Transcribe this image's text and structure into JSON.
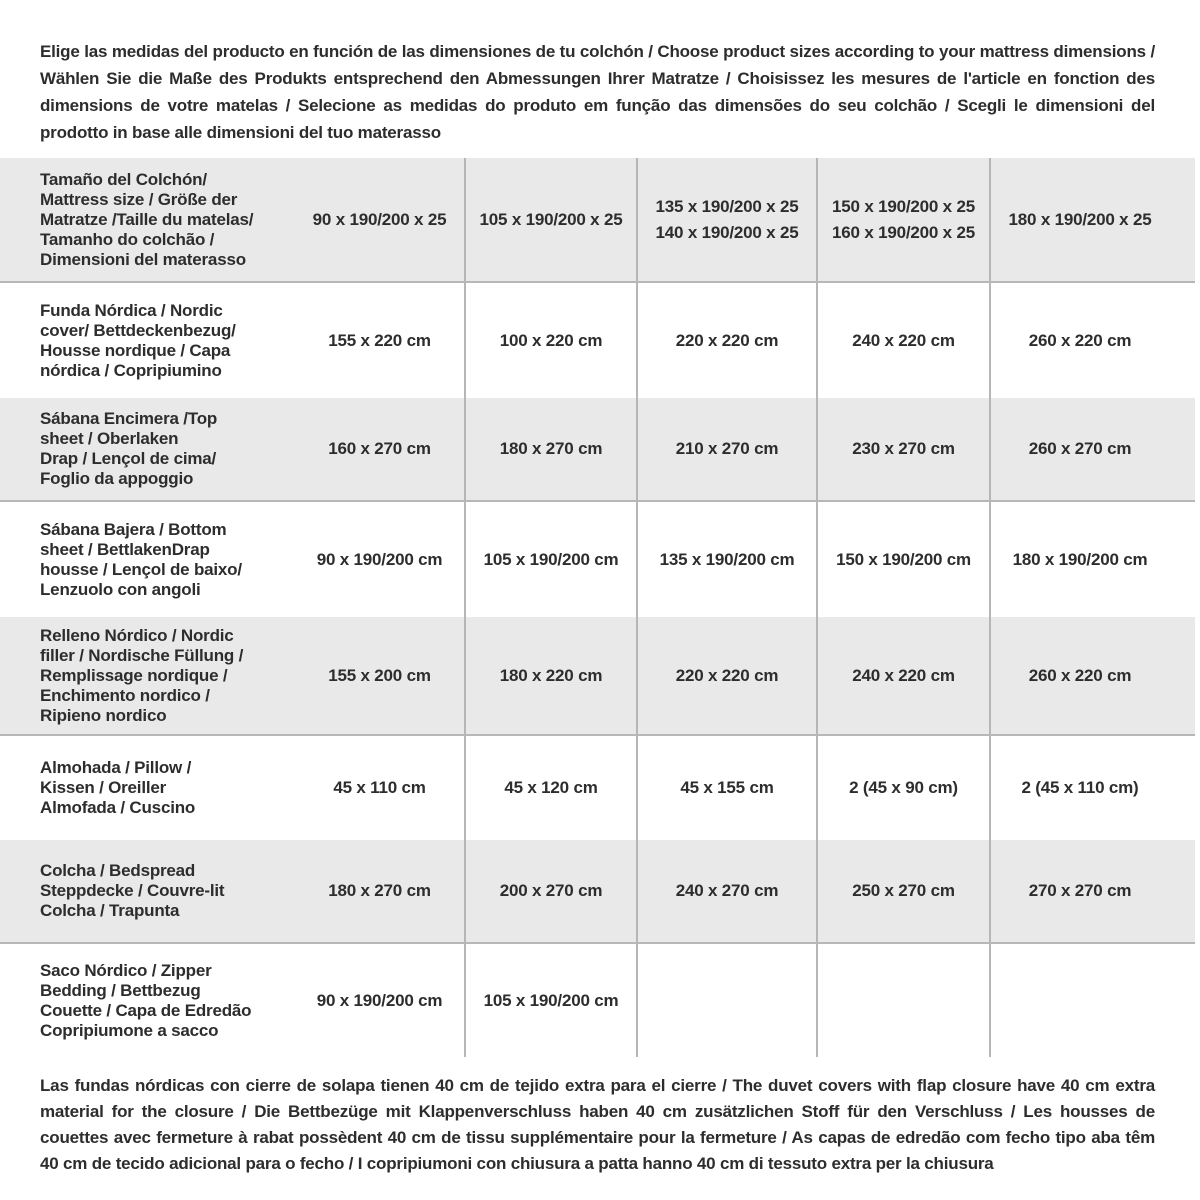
{
  "intro": "Elige las medidas del producto en función de las dimensiones de tu colchón / Choose product sizes according to your mattress dimensions / Wählen Sie die Maße des Produkts entsprechend den Abmessungen Ihrer Matratze / Choisissez les mesures de l'article en fonction des dimensions de votre matelas / Selecione as medidas do produto em função das dimensões do seu colchão / Scegli le dimensioni del prodotto in base alle dimensioni del tuo materasso",
  "table": {
    "rows": [
      {
        "label": "Tamaño del Colchón/\nMattress size / Größe der\nMatratze /Taille du matelas/\nTamanho do colchão /\nDimensioni del materasso",
        "values": [
          "90 x 190/200 x 25",
          "105 x 190/200 x 25",
          "135 x 190/200 x 25\n140 x 190/200 x 25",
          "150 x 190/200 x 25\n160 x 190/200 x 25",
          "180 x 190/200 x 25"
        ]
      },
      {
        "label": "Funda Nórdica /  Nordic\ncover/ Bettdeckenbezug/\nHousse nordique  / Capa\nnórdica / Copripiumino",
        "values": [
          "155 x 220 cm",
          "100 x 220 cm",
          "220 x 220 cm",
          "240 x 220 cm",
          "260 x 220 cm"
        ]
      },
      {
        "label": "Sábana Encimera /Top\nsheet / Oberlaken\nDrap / Lençol de cima/\nFoglio da appoggio",
        "values": [
          "160 x 270 cm",
          "180 x 270 cm",
          "210 x 270 cm",
          "230 x 270 cm",
          "260 x 270 cm"
        ]
      },
      {
        "label": "Sábana Bajera / Bottom\nsheet / BettlakenDrap\nhousse / Lençol de baixo/\nLenzuolo con angoli",
        "values": [
          "90 x 190/200 cm",
          "105 x 190/200 cm",
          "135 x 190/200 cm",
          "150 x 190/200 cm",
          "180 x 190/200 cm"
        ]
      },
      {
        "label": "Relleno Nórdico / Nordic\nfiller / Nordische Füllung /\nRemplissage nordique /\nEnchimento nordico /\nRipieno nordico",
        "values": [
          "155 x 200 cm",
          "180 x 220 cm",
          "220 x 220 cm",
          "240 x 220 cm",
          "260 x 220 cm"
        ]
      },
      {
        "label": "Almohada  / Pillow /\nKissen / Oreiller\nAlmofada / Cuscino",
        "values": [
          "45 x 110 cm",
          "45 x 120 cm",
          "45 x 155 cm",
          "2 (45 x 90 cm)",
          "2 (45 x 110 cm)"
        ]
      },
      {
        "label": "Colcha / Bedspread\nSteppdecke / Couvre-lit\nColcha / Trapunta",
        "values": [
          "180 x 270 cm",
          "200 x 270 cm",
          "240 x 270 cm",
          "250 x 270 cm",
          "270 x 270 cm"
        ]
      },
      {
        "label": "Saco Nórdico / Zipper\nBedding / Bettbezug\nCouette  / Capa de Edredão\nCopripiumone a sacco",
        "values": [
          "90 x 190/200 cm",
          "105 x 190/200 cm",
          "",
          "",
          ""
        ]
      }
    ]
  },
  "footnote": "Las fundas nórdicas con cierre de solapa tienen 40 cm de tejido extra para el cierre  / The duvet covers with flap closure have 40 cm extra material for the closure / Die Bettbezüge mit Klappenverschluss haben 40 cm zusätzlichen Stoff für den Verschluss / Les housses de couettes avec fermeture à rabat possèdent 40 cm de tissu supplémentaire pour la fermeture / As capas de edredão com fecho tipo aba têm 40 cm de tecido adicional para o fecho / I copripiumoni con chiusura a patta hanno 40 cm di tessuto extra per la chiusura",
  "colors": {
    "row_shade": "#e9e9e9",
    "divider": "#b6b6b6",
    "text": "#2d2d2d"
  }
}
